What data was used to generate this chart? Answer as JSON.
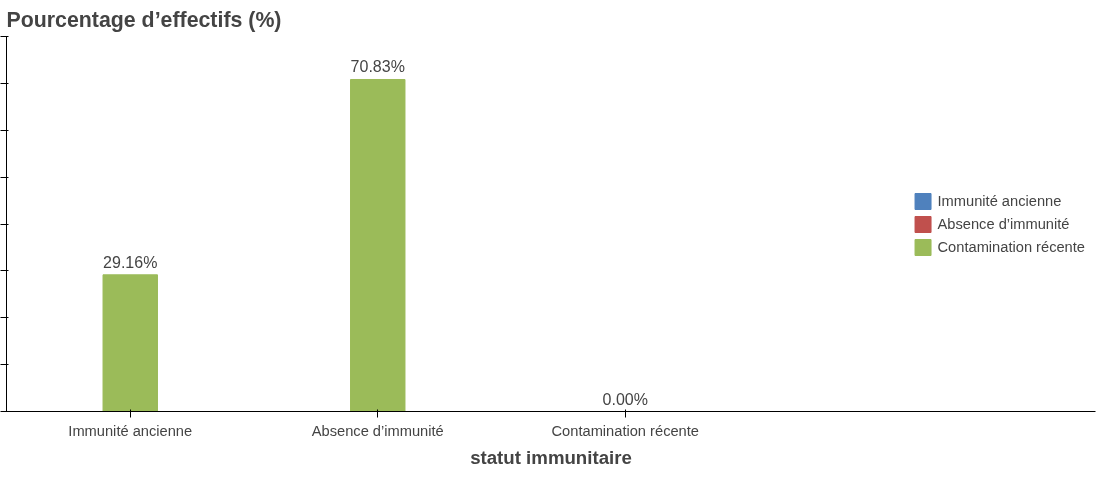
{
  "chart_data": {
    "type": "bar",
    "ylabel": "Pourcentage d’effectifs (%)",
    "xlabel": "statut immunitaire",
    "categories": [
      "Immunité ancienne",
      "Absence d’immunité",
      "Contamination récente"
    ],
    "series": [
      {
        "name": "Immunité ancienne",
        "color": "#4f81bd",
        "values": [
          null,
          null,
          null
        ]
      },
      {
        "name": "Absence d’immunité",
        "color": "#c0504d",
        "values": [
          null,
          null,
          null
        ]
      },
      {
        "name": "Contamination récente",
        "color": "#9bbb59",
        "values": [
          29.16,
          70.83,
          0.0
        ],
        "value_labels": [
          "29.16%",
          "70.83%",
          "0.00%"
        ]
      }
    ],
    "ylim": [
      0,
      80
    ],
    "yticks": [
      {
        "value": 0,
        "label": null
      },
      {
        "value": 10,
        "label": null
      },
      {
        "value": 20,
        "label": null
      },
      {
        "value": 30,
        "label": null
      },
      {
        "value": 40,
        "label": null
      },
      {
        "value": 50,
        "label": null
      },
      {
        "value": 60,
        "label": null
      },
      {
        "value": 70,
        "label": null
      },
      {
        "value": 80,
        "label": null
      }
    ],
    "grid": false,
    "legend": "right"
  }
}
